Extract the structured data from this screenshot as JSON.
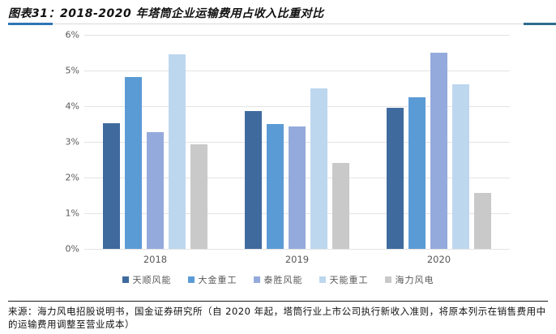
{
  "header": {
    "title": "图表31：2018-2020 年塔筒企业运输费用占收入比重对比"
  },
  "chart_data": {
    "type": "bar",
    "title": "2018-2020 年塔筒企业运输费用占收入比重对比",
    "categories": [
      "2018",
      "2019",
      "2020"
    ],
    "series": [
      {
        "name": "天顺风能",
        "color": "#3f6a9d",
        "values": [
          3.53,
          3.87,
          3.96
        ]
      },
      {
        "name": "大金重工",
        "color": "#5b9bd5",
        "values": [
          4.81,
          3.5,
          4.26
        ]
      },
      {
        "name": "泰胜风能",
        "color": "#95aadc",
        "values": [
          3.28,
          3.44,
          5.51
        ]
      },
      {
        "name": "天能重工",
        "color": "#bdd7ee",
        "values": [
          5.45,
          4.5,
          4.62
        ]
      },
      {
        "name": "海力风电",
        "color": "#c9c9c9",
        "values": [
          2.93,
          2.4,
          1.56
        ]
      }
    ],
    "xlabel": "",
    "ylabel": "",
    "ylim": [
      0,
      6
    ],
    "ytick_step": 1,
    "ytick_format": "{v}%",
    "grid": true,
    "legend_position": "bottom"
  },
  "footer": {
    "source": "来源：海力风电招股说明书，国金证券研究所（自 2020 年起，塔筒行业上市公司执行新收入准则，将原本列示在销售费用中的运输费用调整至营业成本）"
  },
  "colors": {
    "title_underline_accent": "#2e75b6",
    "divider_end_accent": "#2e6d8e",
    "divider_gray": "#d9d9d9",
    "gridline": "#e3e3e3",
    "axis_text": "#595959",
    "source_rule": "#1a1a1a"
  }
}
